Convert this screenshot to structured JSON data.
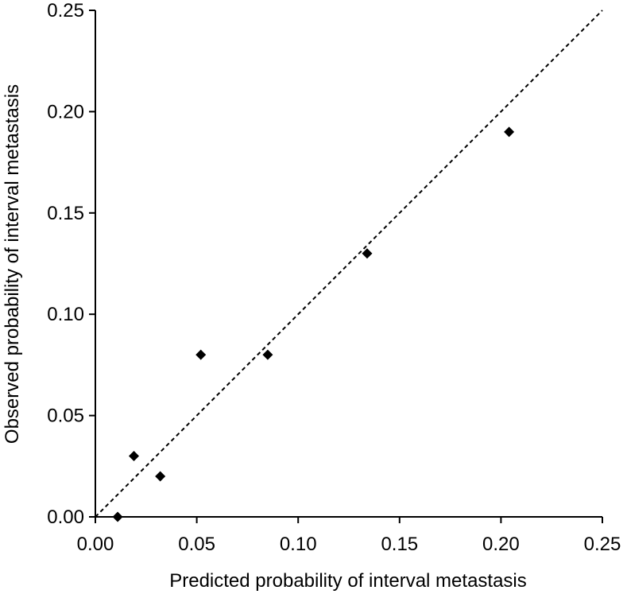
{
  "chart_data": {
    "type": "scatter",
    "title": "",
    "xlabel": "Predicted probability of interval metastasis",
    "ylabel": "Observed probability of interval metastasis",
    "xlim": [
      0,
      0.25
    ],
    "ylim": [
      0,
      0.25
    ],
    "xticks": [
      "0.00",
      "0.05",
      "0.10",
      "0.15",
      "0.20",
      "0.25"
    ],
    "yticks": [
      "0.00",
      "0.05",
      "0.10",
      "0.15",
      "0.20",
      "0.25"
    ],
    "grid": false,
    "legend": "none",
    "reference_line": {
      "style": "dashed",
      "x": [
        0,
        0.25
      ],
      "y": [
        0,
        0.25
      ]
    },
    "marker": "diamond",
    "points": [
      {
        "x": 0.011,
        "y": 0.0
      },
      {
        "x": 0.019,
        "y": 0.03
      },
      {
        "x": 0.032,
        "y": 0.02
      },
      {
        "x": 0.052,
        "y": 0.08
      },
      {
        "x": 0.085,
        "y": 0.08
      },
      {
        "x": 0.134,
        "y": 0.13
      },
      {
        "x": 0.204,
        "y": 0.19
      }
    ],
    "colors": {
      "marker": "#000000",
      "axis": "#000000",
      "reference_line": "#000000"
    }
  }
}
